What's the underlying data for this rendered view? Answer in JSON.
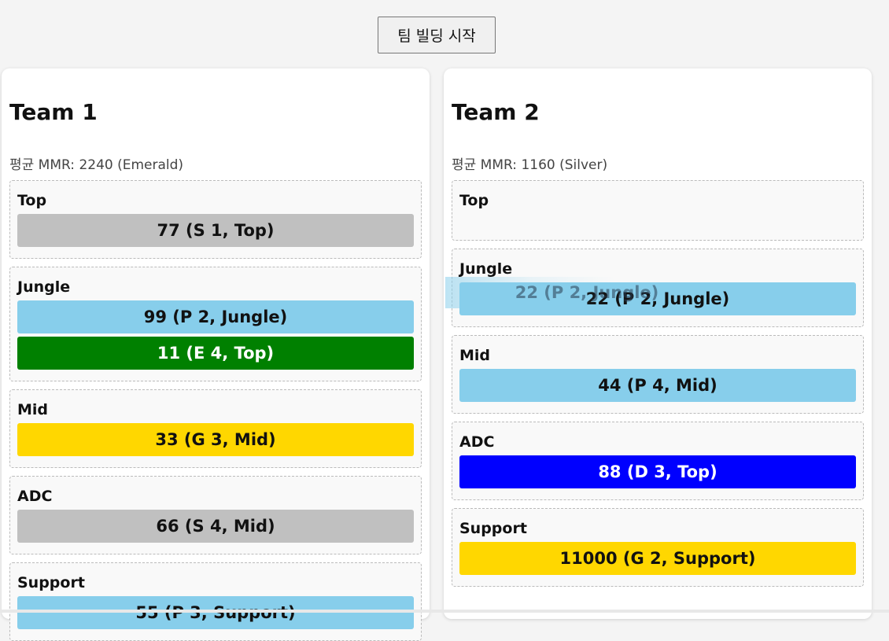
{
  "header": {
    "start_button": "팀 빌딩 시작"
  },
  "colors": {
    "Silver": "#c0c0c0",
    "Platinum": "#87ceeb",
    "Emerald": "#008000",
    "Gold": "#ffd700",
    "Diamond": "#0000ff"
  },
  "teams": [
    {
      "title": "Team 1",
      "avg": "평균 MMR: 2240 (Emerald)",
      "slots": [
        {
          "name": "Top",
          "players": [
            {
              "label": "77 (S 1, Top)",
              "tier": "Silver"
            }
          ]
        },
        {
          "name": "Jungle",
          "players": [
            {
              "label": "99 (P 2, Jungle)",
              "tier": "Platinum"
            },
            {
              "label": "11 (E 4, Top)",
              "tier": "Emerald"
            }
          ]
        },
        {
          "name": "Mid",
          "players": [
            {
              "label": "33 (G 3, Mid)",
              "tier": "Gold"
            }
          ]
        },
        {
          "name": "ADC",
          "players": [
            {
              "label": "66 (S 4, Mid)",
              "tier": "Silver"
            }
          ]
        },
        {
          "name": "Support",
          "players": [
            {
              "label": "55 (P 3, Support)",
              "tier": "Platinum"
            }
          ]
        }
      ]
    },
    {
      "title": "Team 2",
      "avg": "평균 MMR: 1160 (Silver)",
      "slots": [
        {
          "name": "Top",
          "players": []
        },
        {
          "name": "Jungle",
          "players": [
            {
              "label": "22 (P 2, Jungle)",
              "tier": "Platinum"
            }
          ]
        },
        {
          "name": "Mid",
          "players": [
            {
              "label": "44 (P 4, Mid)",
              "tier": "Platinum"
            }
          ]
        },
        {
          "name": "ADC",
          "players": [
            {
              "label": "88 (D 3, Top)",
              "tier": "Diamond"
            }
          ]
        },
        {
          "name": "Support",
          "players": [
            {
              "label": "11000 (G 2, Support)",
              "tier": "Gold"
            }
          ]
        }
      ]
    }
  ],
  "drag_ghost": {
    "label": "22 (P 2, Jungle)"
  }
}
